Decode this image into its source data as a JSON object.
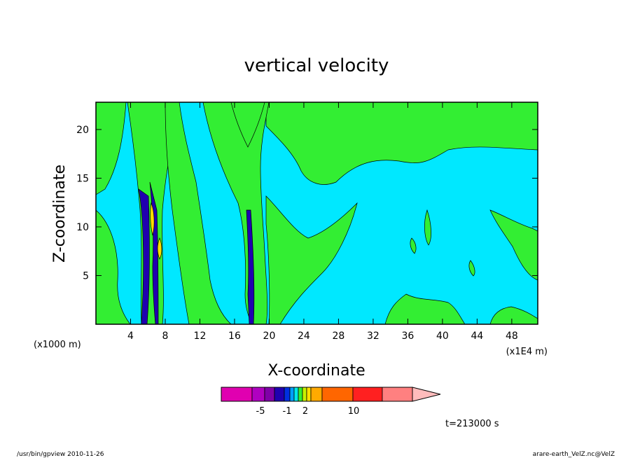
{
  "chart_data": {
    "type": "heatmap",
    "title": "vertical velocity",
    "xlabel": "X-coordinate",
    "ylabel": "Z-coordinate",
    "x_unit_left": "(x1000 m)",
    "x_unit_right": "(x1E4 m)",
    "xlim": [
      0,
      51
    ],
    "ylim": [
      0,
      22.8
    ],
    "x_ticks": [
      4,
      8,
      12,
      16,
      20,
      24,
      28,
      32,
      36,
      40,
      44,
      48
    ],
    "y_ticks": [
      5,
      10,
      15,
      20
    ],
    "time_label": "t=213000 s",
    "colorbar": {
      "colors": [
        "#e000b0",
        "#b000c0",
        "#8000a8",
        "#2000b0",
        "#0030e0",
        "#00a0ff",
        "#00e8e8",
        "#33ee33",
        "#c8f000",
        "#ffe000",
        "#ffaa00",
        "#ff6600",
        "#ff2020",
        "#ff8080"
      ],
      "extend_color": "#ffbcbc",
      "tick_labels": [
        "-5",
        "-1",
        "2",
        "10"
      ]
    },
    "field_colors": {
      "positive": "#33ee33",
      "near_zero": "#00e8ff",
      "strong_negative": "#2000b0",
      "strong_positive": "#ffe000"
    }
  },
  "footer": {
    "left": "/usr/bin/gpview  2010-11-26",
    "right": "arare-earth_VelZ.nc@VelZ"
  }
}
